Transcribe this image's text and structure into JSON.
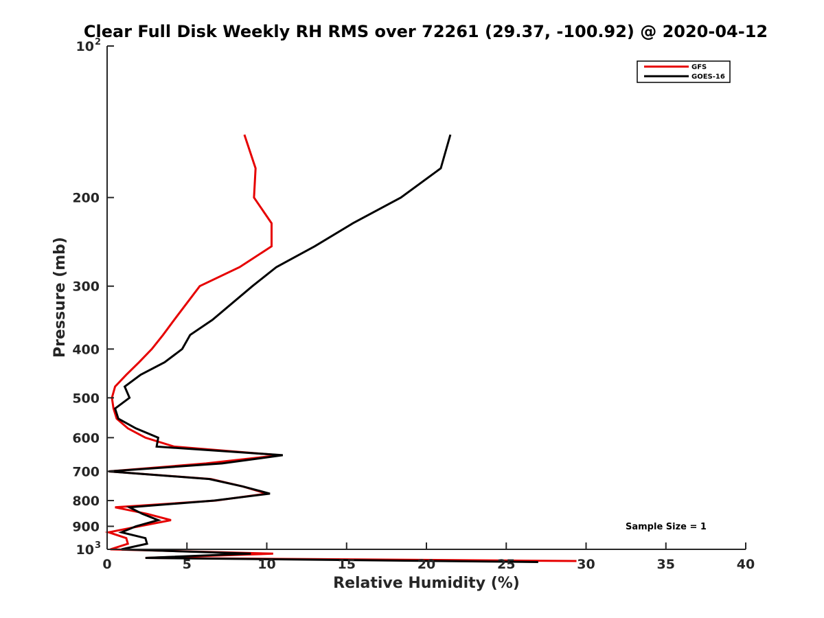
{
  "chart_data": {
    "type": "line",
    "title": "Clear Full Disk Weekly RH RMS over 72261 (29.37, -100.92) @ 2020-04-12",
    "xlabel": "Relative Humidity (%)",
    "ylabel": "Pressure (mb)",
    "xlim": [
      0,
      40
    ],
    "ylim": [
      100,
      1000
    ],
    "y_scale": "log",
    "y_reversed": true,
    "grid": false,
    "legend_position": "top-right",
    "x_ticks": [
      "0",
      "5",
      "10",
      "15",
      "20",
      "25",
      "30",
      "35",
      "40"
    ],
    "y_ticks": [
      {
        "value": 100,
        "base": "10",
        "exp": "2"
      },
      {
        "value": 200,
        "base": "200",
        "exp": ""
      },
      {
        "value": 300,
        "base": "300",
        "exp": ""
      },
      {
        "value": 400,
        "base": "400",
        "exp": ""
      },
      {
        "value": 500,
        "base": "500",
        "exp": ""
      },
      {
        "value": 600,
        "base": "600",
        "exp": ""
      },
      {
        "value": 700,
        "base": "700",
        "exp": ""
      },
      {
        "value": 800,
        "base": "800",
        "exp": ""
      },
      {
        "value": 900,
        "base": "900",
        "exp": ""
      },
      {
        "value": 1000,
        "base": "10",
        "exp": "3"
      }
    ],
    "annotation": "Sample Size = 1",
    "series": [
      {
        "name": "GFS",
        "color": "#e60000",
        "points": [
          [
            8.6,
            150
          ],
          [
            9.3,
            175
          ],
          [
            9.2,
            200
          ],
          [
            10.3,
            225
          ],
          [
            10.3,
            250
          ],
          [
            8.3,
            275
          ],
          [
            5.8,
            300
          ],
          [
            4.2,
            350
          ],
          [
            3.5,
            375
          ],
          [
            2.8,
            400
          ],
          [
            2.0,
            425
          ],
          [
            1.2,
            450
          ],
          [
            0.5,
            475
          ],
          [
            0.3,
            500
          ],
          [
            0.4,
            525
          ],
          [
            0.6,
            550
          ],
          [
            1.3,
            575
          ],
          [
            2.4,
            600
          ],
          [
            4.2,
            625
          ],
          [
            10.8,
            650
          ],
          [
            6.2,
            675
          ],
          [
            0.1,
            700
          ],
          [
            6.5,
            725
          ],
          [
            8.5,
            750
          ],
          [
            10.0,
            775
          ],
          [
            6.8,
            800
          ],
          [
            0.5,
            825
          ],
          [
            2.5,
            850
          ],
          [
            4.0,
            875
          ],
          [
            2.0,
            900
          ],
          [
            0.1,
            925
          ],
          [
            1.2,
            950
          ],
          [
            1.3,
            975
          ],
          [
            0.2,
            1000
          ],
          [
            10.4,
            1020
          ],
          [
            2.4,
            1040
          ],
          [
            29.4,
            1055
          ]
        ]
      },
      {
        "name": "GOES-16",
        "color": "#000000",
        "points": [
          [
            21.5,
            150
          ],
          [
            20.9,
            175
          ],
          [
            18.4,
            200
          ],
          [
            15.4,
            225
          ],
          [
            13.0,
            250
          ],
          [
            10.6,
            275
          ],
          [
            9.1,
            300
          ],
          [
            6.6,
            350
          ],
          [
            5.2,
            375
          ],
          [
            4.7,
            400
          ],
          [
            3.6,
            425
          ],
          [
            2.1,
            450
          ],
          [
            1.1,
            475
          ],
          [
            1.4,
            500
          ],
          [
            0.5,
            525
          ],
          [
            0.7,
            550
          ],
          [
            1.8,
            575
          ],
          [
            3.2,
            600
          ],
          [
            3.1,
            625
          ],
          [
            11.0,
            650
          ],
          [
            7.2,
            675
          ],
          [
            0.1,
            700
          ],
          [
            6.4,
            725
          ],
          [
            8.5,
            750
          ],
          [
            10.2,
            775
          ],
          [
            6.7,
            800
          ],
          [
            1.4,
            825
          ],
          [
            2.2,
            850
          ],
          [
            3.2,
            875
          ],
          [
            1.8,
            900
          ],
          [
            0.9,
            925
          ],
          [
            2.4,
            950
          ],
          [
            2.5,
            975
          ],
          [
            0.9,
            1000
          ],
          [
            9.0,
            1020
          ],
          [
            2.4,
            1040
          ],
          [
            27.0,
            1060
          ]
        ]
      }
    ]
  }
}
